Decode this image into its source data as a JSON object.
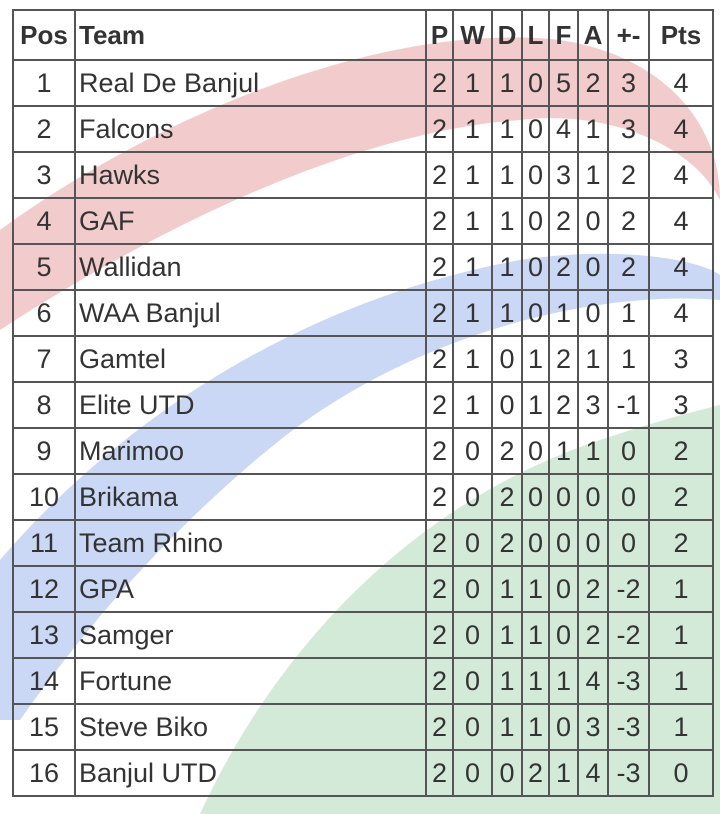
{
  "table": {
    "header": [
      "Pos",
      "Team",
      "P",
      "W",
      "D",
      "L",
      "F",
      "A",
      "+-",
      "Pts"
    ],
    "rows": [
      [
        1,
        "Real De Banjul",
        2,
        1,
        1,
        0,
        5,
        2,
        3,
        4
      ],
      [
        2,
        "Falcons",
        2,
        1,
        1,
        0,
        4,
        1,
        3,
        4
      ],
      [
        3,
        "Hawks",
        2,
        1,
        1,
        0,
        3,
        1,
        2,
        4
      ],
      [
        4,
        "GAF",
        2,
        1,
        1,
        0,
        2,
        0,
        2,
        4
      ],
      [
        5,
        "Wallidan",
        2,
        1,
        1,
        0,
        2,
        0,
        2,
        4
      ],
      [
        6,
        "WAA Banjul",
        2,
        1,
        1,
        0,
        1,
        0,
        1,
        4
      ],
      [
        7,
        "Gamtel",
        2,
        1,
        0,
        1,
        2,
        1,
        1,
        3
      ],
      [
        8,
        "Elite UTD",
        2,
        1,
        0,
        1,
        2,
        3,
        -1,
        3
      ],
      [
        9,
        "Marimoo",
        2,
        0,
        2,
        0,
        1,
        1,
        0,
        2
      ],
      [
        10,
        "Brikama",
        2,
        0,
        2,
        0,
        0,
        0,
        0,
        2
      ],
      [
        11,
        "Team Rhino",
        2,
        0,
        2,
        0,
        0,
        0,
        0,
        2
      ],
      [
        12,
        "GPA",
        2,
        0,
        1,
        1,
        0,
        2,
        -2,
        1
      ],
      [
        13,
        "Samger",
        2,
        0,
        1,
        1,
        0,
        2,
        -2,
        1
      ],
      [
        14,
        "Fortune",
        2,
        0,
        1,
        1,
        1,
        4,
        -3,
        1
      ],
      [
        15,
        "Steve Biko",
        2,
        0,
        1,
        1,
        0,
        3,
        -3,
        1
      ],
      [
        16,
        "Banjul UTD",
        2,
        0,
        0,
        2,
        1,
        4,
        -3,
        0
      ]
    ]
  }
}
